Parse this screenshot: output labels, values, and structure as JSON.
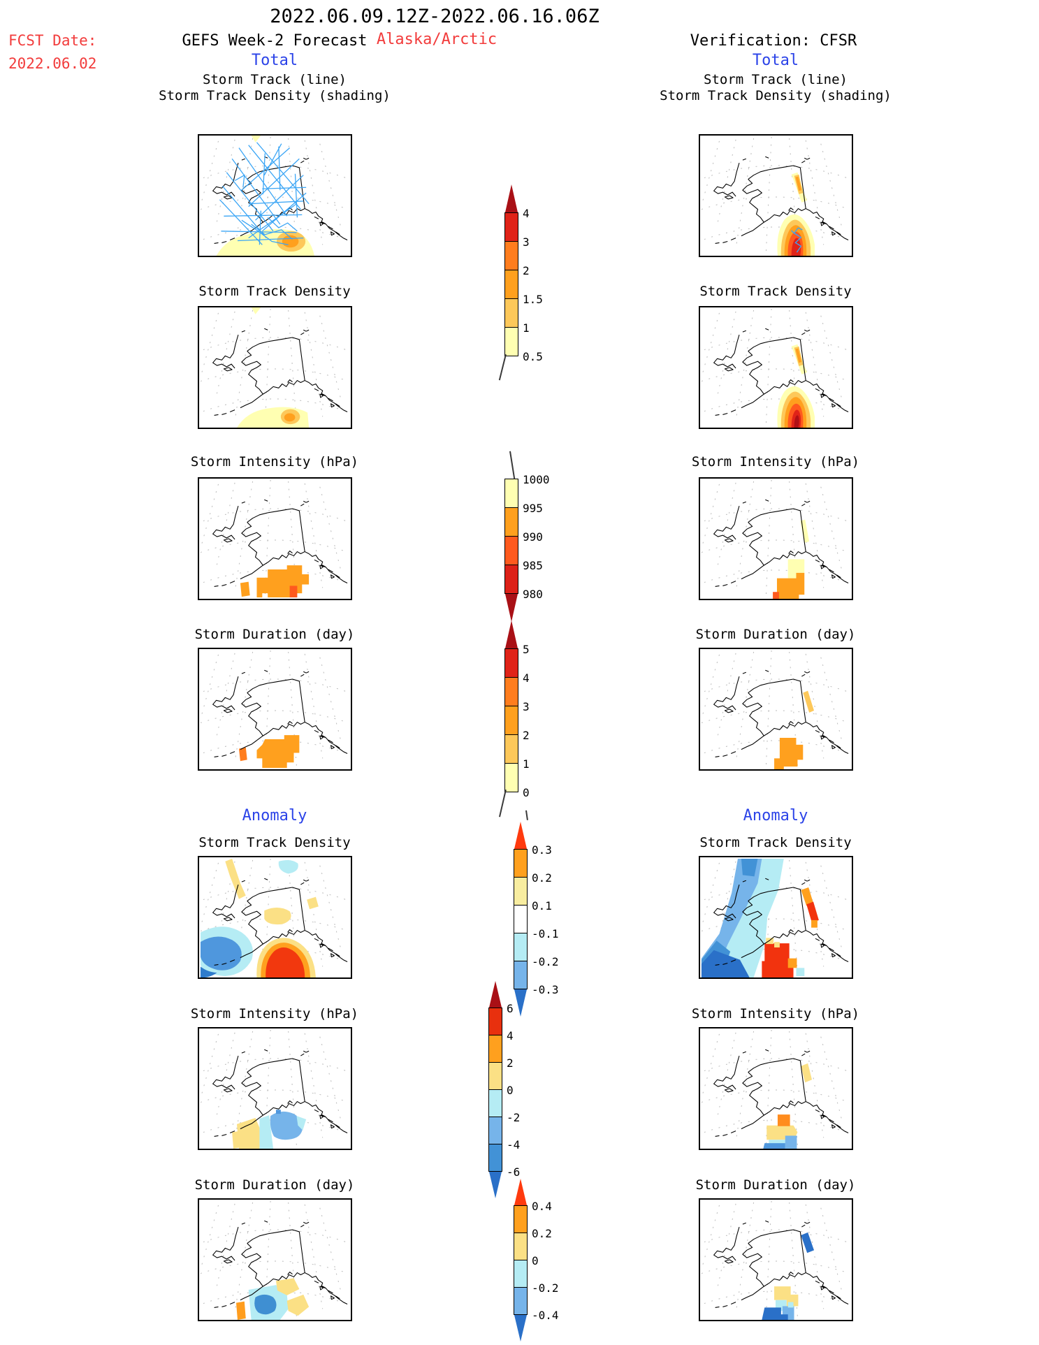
{
  "header": {
    "title": "2022.06.09.12Z-2022.06.16.06Z",
    "fcst_date_label": "FCST Date:",
    "fcst_date_value": "2022.06.02",
    "forecast_title": "GEFS Week-2 Forecast",
    "region": "Alaska/Arctic",
    "verification_title": "Verification: CFSR",
    "left_total": "Total",
    "right_total": "Total",
    "left_anomaly": "Anomaly",
    "right_anomaly": "Anomaly"
  },
  "rows": {
    "r1a": "Storm Track (line)",
    "r1b": "Storm Track Density (shading)",
    "r2": "Storm Track Density",
    "r3": "Storm Intensity (hPa)",
    "r4": "Storm Duration (day)",
    "r5": "Storm Track Density",
    "r6": "Storm Intensity (hPa)",
    "r7": "Storm Duration (day)"
  },
  "palette": {
    "dark_red": "#a91016",
    "red": "#e02318",
    "orange_red": "#ff7d1e",
    "orange": "#ffa01e",
    "light_orange": "#fdc85a",
    "pale_yellow": "#ffffb2",
    "golden": "#fbe085",
    "cyan": "#b5ecf4",
    "light_blue": "#76b4ea",
    "medium_blue": "#4292d6",
    "dark_blue": "#2a70c8",
    "track_blue": "#3aa5f5",
    "anomaly_hot_arrow": "#ff3a0e"
  },
  "chart_data": {
    "type": "heatmap",
    "title": "GEFS Week-2 storm-track forecast vs CFSR verification, Alaska/Arctic, 2022.06.09.12Z-2022.06.16.06Z",
    "columns": [
      "GEFS Week-2 Forecast (FCST Date 2022.06.02)",
      "Verification: CFSR"
    ],
    "row_layout": [
      "Total: Storm Track (line)+Density (shading)",
      "Total: Storm Track Density",
      "Total: Storm Intensity (hPa)",
      "Total: Storm Duration (day)",
      "Anomaly: Storm Track Density",
      "Anomaly: Storm Intensity (hPa)",
      "Anomaly: Storm Duration (day)"
    ],
    "basemap": "Alaska/Bering Sea coastline with gray dashed graticule fan",
    "panels": [
      {
        "column": "GEFS",
        "row": "Storm Track (line)+Density (shading)",
        "content": "dense mesh of blue storm tracks over Bering Sea and Gulf of Alaska; density shading to ~1.5 south of Alaska Peninsula"
      },
      {
        "column": "CFSR",
        "row": "Storm Track (line)+Density (shading)",
        "content": "single blue track inside strong density bullseye (to >4) south of the panhandle; orange streak northeast of border"
      },
      {
        "column": "GEFS",
        "row": "Storm Track Density",
        "content": "weak maximum ~1.5 south of Alaska Peninsula, broad 0.5 band along south edge"
      },
      {
        "column": "CFSR",
        "row": "Storm Track Density",
        "content": "intense bullseye to ~4 in Gulf of Alaska; orange streak upper right"
      },
      {
        "column": "GEFS",
        "row": "Storm Intensity (hPa)",
        "content": "blocky 990-995 hPa region south of coast with small 985-990 cell"
      },
      {
        "column": "CFSR",
        "row": "Storm Intensity (hPa)",
        "content": "blocky 990-995 hPa region in Gulf with 1000-995 fringe and small deeper cell"
      },
      {
        "column": "GEFS",
        "row": "Storm Duration (day)",
        "content": "2-3 day blocky region south of coast; small 3-4 day cell west"
      },
      {
        "column": "CFSR",
        "row": "Storm Duration (day)",
        "content": "2-3 day blocky region in Gulf; 1-2 day streak upper right"
      },
      {
        "column": "GEFS",
        "row": "Anomaly Storm Track Density",
        "content": "negative (blue, to -0.3) southwest of Aleutians; positive (red, >0.3) Gulf of Alaska; weak yellow/cyan patches inland"
      },
      {
        "column": "CFSR",
        "row": "Anomaly Storm Track Density",
        "content": "large blocky negative wedge (to <-0.3) over Bering Sea; strong positive blocks (>0.3) south of panhandle; orange/red streak upper right"
      },
      {
        "column": "GEFS",
        "row": "Anomaly Storm Intensity (hPa)",
        "content": "positive yellow 0-2 patch west, negative blue to -4 southeast of Kenai"
      },
      {
        "column": "CFSR",
        "row": "Anomaly Storm Intensity (hPa)",
        "content": "orange +4 block over coast, yellow band, blue negative blocks to -4 offshore; yellow streak upper right"
      },
      {
        "column": "GEFS",
        "row": "Anomaly Storm Duration (day)",
        "content": "negative blue core ~-0.4 south of coast ringed by cyan; golden positive patches; small orange block west"
      },
      {
        "column": "CFSR",
        "row": "Anomaly Storm Duration (day)",
        "content": "golden positive blocks near coast, strong blue negative blocks (-0.4) offshore; blue streak upper right"
      }
    ],
    "colorbars": [
      {
        "label": "Storm Track Density (Total)",
        "ticks": [
          "4",
          "3",
          "2",
          "1.5",
          "1",
          "0.5"
        ],
        "segment_colors": [
          "#e02318",
          "#ff7d1e",
          "#ffa01e",
          "#fdc85a",
          "#ffffb2"
        ],
        "arrow_top_color": "#a91016",
        "arrow_bottom_color": null
      },
      {
        "label": "Storm Intensity (Total, hPa)",
        "ticks": [
          "1000",
          "995",
          "990",
          "985",
          "980"
        ],
        "segment_colors": [
          "#ffffb2",
          "#ffa01e",
          "#ff5a1e",
          "#dd2118"
        ],
        "arrow_top_color": null,
        "arrow_bottom_color": "#a91016"
      },
      {
        "label": "Storm Duration (Total, day)",
        "ticks": [
          "5",
          "4",
          "3",
          "2",
          "1",
          "0"
        ],
        "segment_colors": [
          "#e02318",
          "#ff7d1e",
          "#ffa01e",
          "#fdc85a",
          "#ffffb2"
        ],
        "arrow_top_color": "#a91016",
        "arrow_bottom_color": null
      },
      {
        "label": "Storm Track Density (Anomaly)",
        "ticks": [
          "0.3",
          "0.2",
          "0.1",
          "-0.1",
          "-0.2",
          "-0.3"
        ],
        "segment_colors": [
          "#ffa01e",
          "#f8eda0",
          "#ffffff",
          "#b5ecf4",
          "#76b4ea"
        ],
        "arrow_top_color": "#ff3a0e",
        "arrow_bottom_color": "#2a70c8"
      },
      {
        "label": "Storm Intensity (Anomaly, hPa)",
        "ticks": [
          "6",
          "4",
          "2",
          "0",
          "-2",
          "-4",
          "-6"
        ],
        "segment_colors": [
          "#e8300e",
          "#ffa01e",
          "#fbe085",
          "#b5ecf4",
          "#76b4ea",
          "#4292d6"
        ],
        "arrow_top_color": "#a91016",
        "arrow_bottom_color": "#2a70c8"
      },
      {
        "label": "Storm Duration (Anomaly, day)",
        "ticks": [
          "0.4",
          "0.2",
          "0",
          "-0.2",
          "-0.4"
        ],
        "segment_colors": [
          "#ffa01e",
          "#fbe085",
          "#b5ecf4",
          "#76b4ea"
        ],
        "arrow_top_color": "#ff3a0e",
        "arrow_bottom_color": "#2a70c8"
      }
    ]
  }
}
